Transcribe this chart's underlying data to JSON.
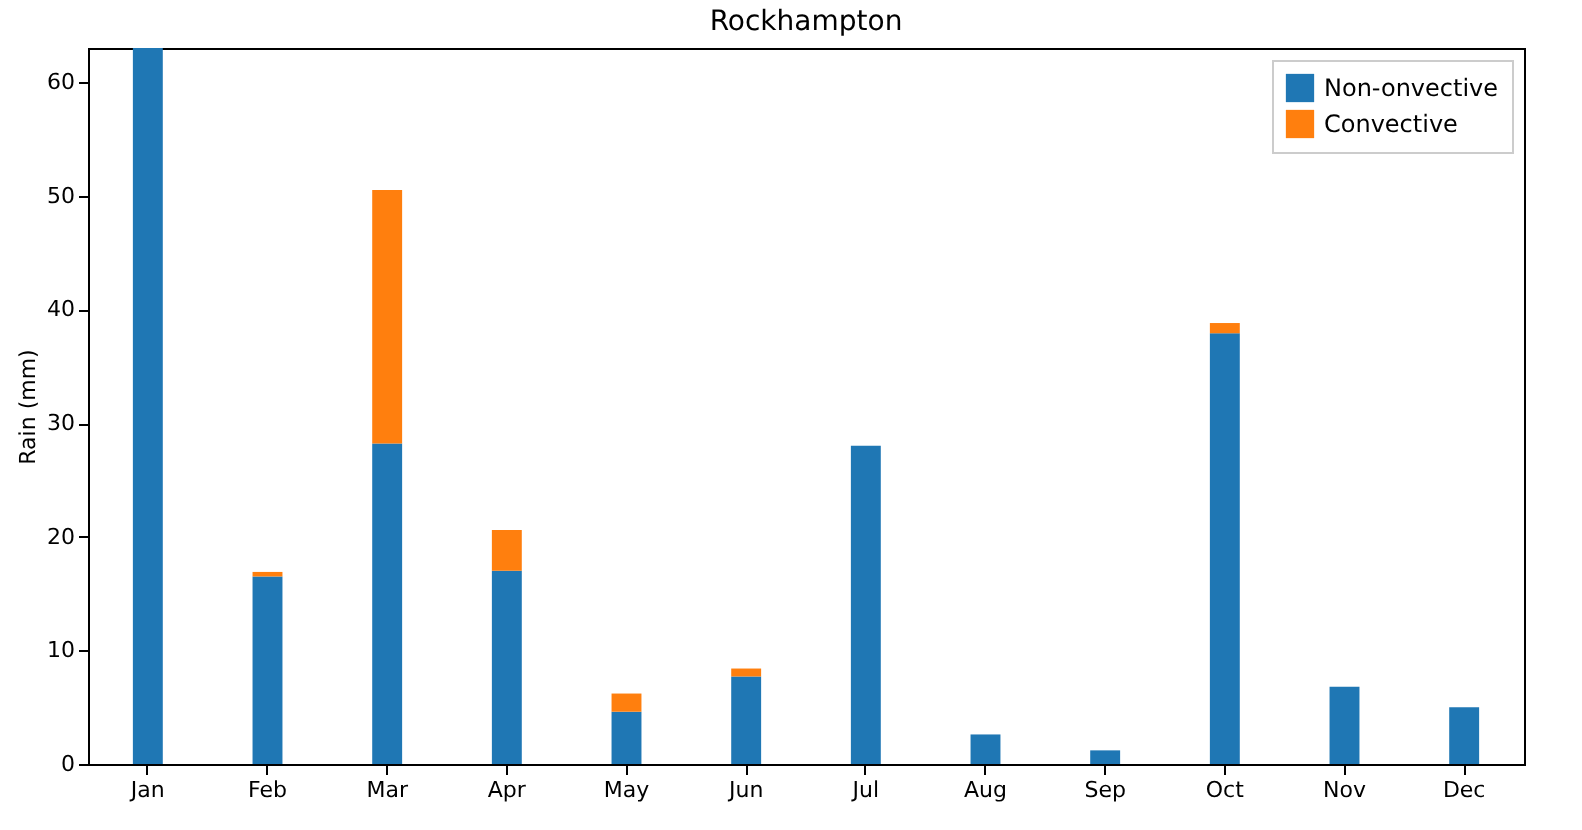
{
  "chart_data": {
    "type": "bar",
    "title": "Rockhampton",
    "ylabel": "Rain (mm)",
    "categories": [
      "Jan",
      "Feb",
      "Mar",
      "Apr",
      "May",
      "Jun",
      "Jul",
      "Aug",
      "Sep",
      "Oct",
      "Nov",
      "Dec"
    ],
    "series": [
      {
        "name": "Non-onvective",
        "color": "#1f77b4",
        "values": [
          63,
          16.5,
          28.2,
          17,
          4.6,
          7.7,
          28,
          2.6,
          1.2,
          37.9,
          6.8,
          5.0
        ]
      },
      {
        "name": "Convective",
        "color": "#ff7f0e",
        "values": [
          0,
          0.4,
          22.3,
          3.6,
          1.6,
          0.7,
          0,
          0,
          0,
          0.9,
          0,
          0
        ]
      }
    ],
    "stacked": true,
    "ylim": [
      0,
      63
    ],
    "yticks": [
      0,
      10,
      20,
      30,
      40,
      50,
      60
    ],
    "grid": false,
    "legend": "top right"
  }
}
